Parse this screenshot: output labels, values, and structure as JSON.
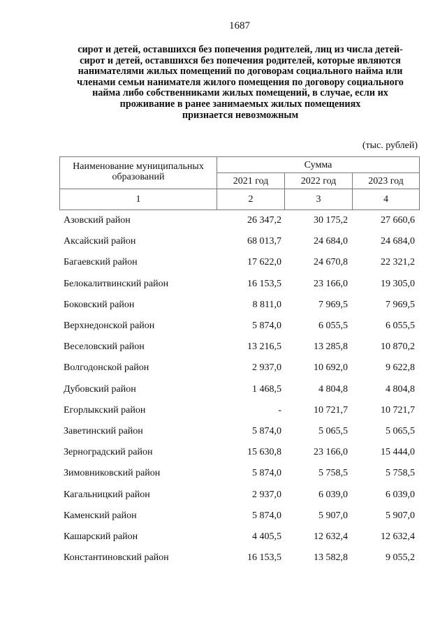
{
  "page_number": "1687",
  "title_lines": [
    "сирот и детей, оставшихся без попечения родителей, лиц из числа детей-",
    "сирот и детей, оставшихся без попечения родителей, которые являются",
    "нанимателями жилых помещений по договорам социального найма или",
    "членами семьи нанимателя жилого помещения по договору социального",
    "найма либо собственниками жилых помещений, в случае, если их",
    "проживание в ранее занимаемых жилых помещениях",
    "признается невозможным"
  ],
  "units": "(тыс. рублей)",
  "table": {
    "header_name": "Наименование муниципальных образований",
    "header_sum": "Сумма",
    "years": [
      "2021 год",
      "2022 год",
      "2023 год"
    ],
    "col_numbers": [
      "1",
      "2",
      "3",
      "4"
    ],
    "rows": [
      {
        "name": "Азовский район",
        "v": [
          "26 347,2",
          "30 175,2",
          "27 660,6"
        ]
      },
      {
        "name": "Аксайский район",
        "v": [
          "68 013,7",
          "24 684,0",
          "24 684,0"
        ]
      },
      {
        "name": "Багаевский район",
        "v": [
          "17 622,0",
          "24 670,8",
          "22 321,2"
        ]
      },
      {
        "name": "Белокалитвинский район",
        "v": [
          "16 153,5",
          "23 166,0",
          "19 305,0"
        ]
      },
      {
        "name": "Боковский район",
        "v": [
          "8 811,0",
          "7 969,5",
          "7 969,5"
        ]
      },
      {
        "name": "Верхнедонской район",
        "v": [
          "5 874,0",
          "6 055,5",
          "6 055,5"
        ]
      },
      {
        "name": "Веселовский район",
        "v": [
          "13 216,5",
          "13 285,8",
          "10 870,2"
        ]
      },
      {
        "name": "Волгодонской район",
        "v": [
          "2 937,0",
          "10 692,0",
          "9 622,8"
        ]
      },
      {
        "name": "Дубовский район",
        "v": [
          "1 468,5",
          "4 804,8",
          "4 804,8"
        ]
      },
      {
        "name": "Егорлыкский район",
        "v": [
          "-",
          "10 721,7",
          "10 721,7"
        ]
      },
      {
        "name": "Заветинский район",
        "v": [
          "5 874,0",
          "5 065,5",
          "5 065,5"
        ]
      },
      {
        "name": "Зерноградский район",
        "v": [
          "15 630,8",
          "23 166,0",
          "15 444,0"
        ]
      },
      {
        "name": "Зимовниковский район",
        "v": [
          "5 874,0",
          "5 758,5",
          "5 758,5"
        ]
      },
      {
        "name": "Кагальницкий район",
        "v": [
          "2 937,0",
          "6 039,0",
          "6 039,0"
        ]
      },
      {
        "name": "Каменский район",
        "v": [
          "5 874,0",
          "5 907,0",
          "5 907,0"
        ]
      },
      {
        "name": "Кашарский район",
        "v": [
          "4 405,5",
          "12 632,4",
          "12 632,4"
        ]
      },
      {
        "name": "Константиновский район",
        "v": [
          "16 153,5",
          "13 582,8",
          "9 055,2"
        ]
      }
    ]
  }
}
